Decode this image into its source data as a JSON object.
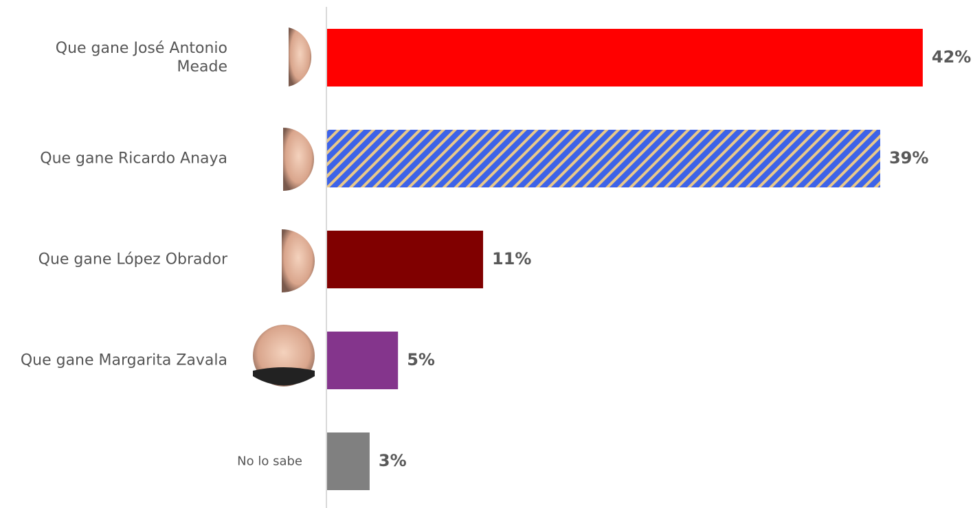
{
  "chart_data": {
    "type": "hbar",
    "categories": [
      "Que gane José Antonio Meade",
      "Que gane Ricardo Anaya",
      "Que gane López Obrador",
      "Que gane Margarita Zavala",
      "No lo sabe"
    ],
    "values": [
      42,
      39,
      11,
      5,
      3
    ],
    "value_labels": [
      "42%",
      "39%",
      "11%",
      "5%",
      "3%"
    ],
    "colors": [
      "#ff0000",
      "#3d63e8",
      "#800000",
      "#84358c",
      "#808080"
    ],
    "hatch": {
      "bar": 1,
      "color": "#e9c98a"
    }
  }
}
